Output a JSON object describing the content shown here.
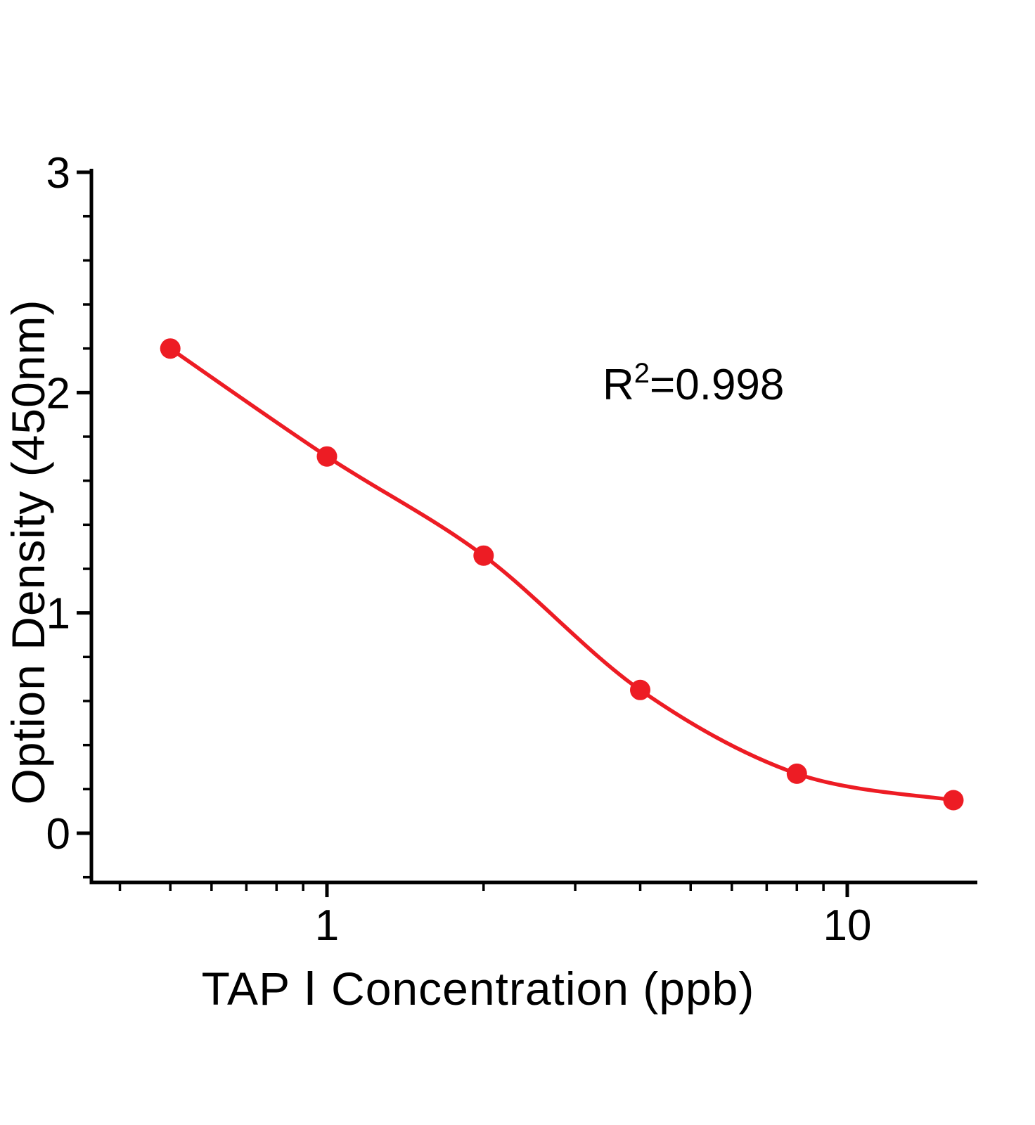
{
  "annotation": {
    "base": "R",
    "sup": "2",
    "rest": "=0.998"
  },
  "chart_data": {
    "type": "scatter",
    "title": "",
    "xlabel": "TAP Ⅰ Concentration (ppb)",
    "ylabel": "Option Density (450nm)",
    "x_scale": "log10",
    "y_scale": "linear",
    "x_range": [
      0.35,
      17.8
    ],
    "y_range": [
      -0.22,
      3
    ],
    "grid": false,
    "legend": null,
    "fit": {
      "type": "4PL sigmoidal (decreasing)",
      "r_squared": 0.998,
      "label": "R²=0.998"
    },
    "points": [
      {
        "x": 0.5,
        "y": 2.2
      },
      {
        "x": 1,
        "y": 1.71
      },
      {
        "x": 2,
        "y": 1.26
      },
      {
        "x": 4,
        "y": 0.65
      },
      {
        "x": 8,
        "y": 0.27
      },
      {
        "x": 16,
        "y": 0.15
      }
    ],
    "x_ticks_major": [
      {
        "v": 1,
        "label": "1"
      },
      {
        "v": 10,
        "label": "10"
      }
    ],
    "x_ticks_minor": [
      0.4,
      0.5,
      0.6,
      0.7,
      0.8,
      0.9,
      2,
      3,
      4,
      5,
      6,
      7,
      8,
      9
    ],
    "y_ticks_major": [
      {
        "v": 0,
        "label": "0"
      },
      {
        "v": 1,
        "label": "1"
      },
      {
        "v": 2,
        "label": "2"
      },
      {
        "v": 3,
        "label": "3"
      }
    ],
    "y_ticks_minor": [
      -0.2,
      0.2,
      0.4,
      0.6,
      0.8,
      1.2,
      1.4,
      1.6,
      1.8,
      2.2,
      2.4,
      2.6,
      2.8
    ],
    "colors": {
      "curve": "#ed1c24",
      "points": "#ed1c24",
      "axis": "#000000",
      "text": "#000000",
      "background": "#ffffff"
    }
  }
}
